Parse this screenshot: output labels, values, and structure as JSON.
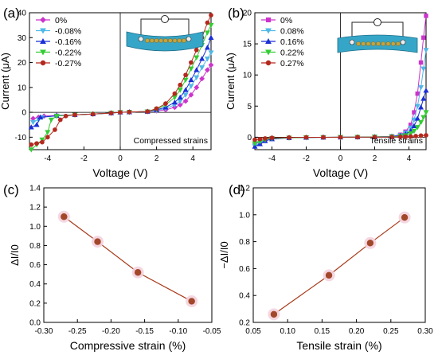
{
  "colors": {
    "s0": "#cc33cc",
    "s1": "#4fb8e6",
    "s2": "#1a2fd6",
    "s3": "#33cc33",
    "s4": "#b4281e",
    "fit": "#a83a1a",
    "marker": "#a3472a",
    "device_blue": "#36a6c8",
    "device_gold": "#c9a23a"
  },
  "chart_data": [
    {
      "type": "line",
      "panel_label": "(a)",
      "xlabel": "Voltage (V)",
      "ylabel": "Current (μA)",
      "xlim": [
        -5,
        5
      ],
      "ylim": [
        -15,
        40
      ],
      "xticks": [
        -4,
        -2,
        0,
        2,
        4
      ],
      "xtick_labels": [
        "-4",
        "-2",
        "0",
        "2",
        "4"
      ],
      "yticks": [
        -10,
        0,
        10,
        20,
        30,
        40
      ],
      "ytick_labels": [
        "-10",
        "0",
        "10",
        "20",
        "30",
        "40"
      ],
      "annotation": "Compressed strains",
      "icon": "device-compressed-icon",
      "legend_position": "top-left",
      "series": [
        {
          "name": "0%",
          "marker": "diamond",
          "color": "s0",
          "x": [
            -4.8,
            -4.5,
            -4.2,
            -3.5,
            -2.5,
            -1.5,
            -0.5,
            0,
            0.5,
            1.5,
            2.0,
            2.5,
            3.0,
            3.3,
            3.6,
            3.9,
            4.2,
            4.5,
            4.8,
            5.0
          ],
          "y": [
            -2.5,
            -2.0,
            -1.5,
            -1.2,
            -1.0,
            -0.7,
            -0.3,
            0,
            0.1,
            0.3,
            0.6,
            1.0,
            2.0,
            3.0,
            4.5,
            7.0,
            10.0,
            13.5,
            17.0,
            19.0
          ]
        },
        {
          "name": "-0.08%",
          "marker": "triangle-down",
          "color": "s1",
          "x": [
            -4.8,
            -4.5,
            -4.3,
            -3.5,
            -2.5,
            -1.5,
            -0.5,
            0,
            0.5,
            1.5,
            2.0,
            2.5,
            3.0,
            3.3,
            3.6,
            3.9,
            4.2,
            4.5,
            4.8,
            5.0
          ],
          "y": [
            -4.0,
            -3.0,
            -2.0,
            -1.4,
            -1.0,
            -0.7,
            -0.3,
            0,
            0.1,
            0.3,
            0.8,
            1.5,
            3.0,
            4.5,
            7.0,
            10.5,
            14.0,
            18.0,
            21.5,
            24.0
          ]
        },
        {
          "name": "-0.16%",
          "marker": "triangle-up",
          "color": "s2",
          "x": [
            -4.9,
            -4.6,
            -4.4,
            -3.5,
            -2.5,
            -1.5,
            -0.5,
            0,
            0.5,
            1.5,
            2.0,
            2.5,
            3.0,
            3.3,
            3.6,
            3.9,
            4.2,
            4.5,
            4.8,
            5.0
          ],
          "y": [
            -6.0,
            -5.0,
            -2.0,
            -1.4,
            -1.0,
            -0.7,
            -0.3,
            0,
            0.1,
            0.3,
            1.0,
            2.0,
            4.0,
            6.0,
            9.0,
            13.0,
            17.0,
            21.5,
            26.0,
            30.0
          ]
        },
        {
          "name": "-0.22%",
          "marker": "triangle-down",
          "color": "s3",
          "x": [
            -4.9,
            -4.6,
            -4.3,
            -4.0,
            -3.8,
            -3.5,
            -2.5,
            -1.5,
            -0.5,
            0,
            0.5,
            1.5,
            2.0,
            2.5,
            3.0,
            3.3,
            3.6,
            3.9,
            4.2,
            4.5,
            4.8,
            5.0
          ],
          "y": [
            -15.0,
            -13.0,
            -11.0,
            -8.0,
            -3.0,
            -1.5,
            -1.0,
            -0.7,
            -0.3,
            0,
            0.1,
            0.3,
            1.2,
            3.0,
            6.0,
            9.0,
            13.0,
            17.5,
            22.0,
            27.0,
            32.0,
            35.0
          ]
        },
        {
          "name": "-0.27%",
          "marker": "circle",
          "color": "s4",
          "x": [
            -4.9,
            -4.6,
            -4.3,
            -4.0,
            -3.6,
            -3.3,
            -3.0,
            -2.5,
            -1.5,
            -0.5,
            0,
            0.5,
            1.5,
            2.0,
            2.5,
            3.0,
            3.3,
            3.6,
            3.9,
            4.2,
            4.5,
            4.8,
            5.0
          ],
          "y": [
            -13.0,
            -12.5,
            -12.0,
            -10.0,
            -7.0,
            -3.0,
            -1.5,
            -1.0,
            -0.7,
            -0.3,
            0,
            0.1,
            0.3,
            1.5,
            3.5,
            7.5,
            11.0,
            15.0,
            20.0,
            25.0,
            30.0,
            36.0,
            39.0
          ]
        }
      ]
    },
    {
      "type": "line",
      "panel_label": "(b)",
      "xlabel": "Voltage (V)",
      "ylabel": "Current (μA)",
      "xlim": [
        -5,
        5
      ],
      "ylim": [
        -2,
        20
      ],
      "xticks": [
        -4,
        -2,
        0,
        2,
        4
      ],
      "xtick_labels": [
        "-4",
        "-2",
        "0",
        "2",
        "4"
      ],
      "yticks": [
        0,
        5,
        10,
        15,
        20
      ],
      "ytick_labels": [
        "0",
        "5",
        "10",
        "15",
        "20"
      ],
      "annotation": "Tensile strains",
      "icon": "device-tensile-icon",
      "legend_position": "top-left",
      "series": [
        {
          "name": "0%",
          "marker": "square",
          "color": "s0",
          "x": [
            -5.0,
            -4.7,
            -4.4,
            -4.0,
            -3.0,
            -2.0,
            -1.0,
            0,
            1.0,
            2.0,
            3.0,
            3.5,
            3.8,
            4.1,
            4.3,
            4.5,
            4.7,
            4.85,
            5.0
          ],
          "y": [
            -1.0,
            -0.8,
            -0.4,
            -0.2,
            -0.1,
            -0.05,
            -0.02,
            0,
            0.02,
            0.05,
            0.15,
            0.4,
            0.9,
            2.0,
            4.0,
            7.0,
            12.0,
            16.0,
            19.5
          ]
        },
        {
          "name": "0.08%",
          "marker": "triangle-down",
          "color": "s1",
          "x": [
            -5.0,
            -4.7,
            -4.4,
            -4.0,
            -3.0,
            -2.0,
            -1.0,
            0,
            1.0,
            2.0,
            3.0,
            3.5,
            3.8,
            4.1,
            4.3,
            4.5,
            4.7,
            4.85,
            5.0
          ],
          "y": [
            -1.4,
            -1.0,
            -0.5,
            -0.25,
            -0.1,
            -0.05,
            -0.02,
            0,
            0.02,
            0.05,
            0.12,
            0.3,
            0.7,
            1.5,
            2.8,
            5.0,
            8.0,
            11.0,
            14.0
          ]
        },
        {
          "name": "0.16%",
          "marker": "triangle-up",
          "color": "s2",
          "x": [
            -5.0,
            -4.7,
            -4.4,
            -4.0,
            -3.0,
            -2.0,
            -1.0,
            0,
            1.0,
            2.0,
            3.0,
            3.5,
            3.8,
            4.1,
            4.3,
            4.5,
            4.7,
            4.85,
            5.0
          ],
          "y": [
            -1.5,
            -1.1,
            -0.6,
            -0.3,
            -0.1,
            -0.05,
            -0.02,
            0,
            0.02,
            0.05,
            0.1,
            0.25,
            0.5,
            1.0,
            1.8,
            3.0,
            4.8,
            6.2,
            7.5
          ]
        },
        {
          "name": "0.22%",
          "marker": "triangle-down",
          "color": "s3",
          "x": [
            -5.0,
            -4.7,
            -4.4,
            -4.0,
            -3.0,
            -2.0,
            -1.0,
            0,
            1.0,
            2.0,
            3.0,
            3.5,
            3.8,
            4.1,
            4.3,
            4.5,
            4.7,
            4.85,
            5.0
          ],
          "y": [
            -1.0,
            -0.7,
            -0.4,
            -0.2,
            -0.1,
            -0.05,
            -0.02,
            0,
            0.02,
            0.05,
            0.08,
            0.15,
            0.3,
            0.6,
            1.0,
            1.6,
            2.4,
            3.2,
            4.0
          ]
        },
        {
          "name": "0.27%",
          "marker": "circle",
          "color": "s4",
          "x": [
            -5.0,
            -4.7,
            -4.4,
            -4.0,
            -3.0,
            -2.0,
            -1.0,
            0,
            1.0,
            2.0,
            3.0,
            3.5,
            3.8,
            4.1,
            4.4,
            4.7,
            5.0
          ],
          "y": [
            -0.4,
            -0.3,
            -0.2,
            -0.1,
            -0.05,
            -0.02,
            -0.01,
            0,
            0.01,
            0.02,
            0.03,
            0.05,
            0.08,
            0.12,
            0.18,
            0.25,
            0.3
          ]
        }
      ]
    },
    {
      "type": "scatter",
      "panel_label": "(c)",
      "xlabel": "Compressive strain (%)",
      "ylabel": "ΔI/I0",
      "xlim": [
        -0.3,
        -0.05
      ],
      "ylim": [
        0.0,
        1.4
      ],
      "xticks": [
        -0.3,
        -0.25,
        -0.2,
        -0.15,
        -0.1,
        -0.05
      ],
      "xtick_labels": [
        "-0.30",
        "-0.25",
        "-0.20",
        "-0.15",
        "-0.10",
        "-0.05"
      ],
      "yticks": [
        0.0,
        0.2,
        0.4,
        0.6,
        0.8,
        1.0,
        1.2,
        1.4
      ],
      "ytick_labels": [
        "0.0",
        "0.2",
        "0.4",
        "0.6",
        "0.8",
        "1.0",
        "1.2",
        "1.4"
      ],
      "series": [
        {
          "marker": "circle",
          "color": "marker",
          "x": [
            -0.27,
            -0.22,
            -0.16,
            -0.08
          ],
          "y": [
            1.1,
            0.84,
            0.52,
            0.22
          ]
        }
      ]
    },
    {
      "type": "scatter",
      "panel_label": "(d)",
      "xlabel": "Tensile strain (%)",
      "ylabel": "−ΔI/I0",
      "xlim": [
        0.05,
        0.3
      ],
      "ylim": [
        0.2,
        1.2
      ],
      "xticks": [
        0.05,
        0.1,
        0.15,
        0.2,
        0.25,
        0.3
      ],
      "xtick_labels": [
        "0.05",
        "0.10",
        "0.15",
        "0.20",
        "0.25",
        "0.30"
      ],
      "yticks": [
        0.2,
        0.4,
        0.6,
        0.8,
        1.0,
        1.2
      ],
      "ytick_labels": [
        "0.2",
        "0.4",
        "0.6",
        "0.8",
        "1.0",
        "1.2"
      ],
      "series": [
        {
          "marker": "circle",
          "color": "marker",
          "x": [
            0.08,
            0.16,
            0.22,
            0.27
          ],
          "y": [
            0.26,
            0.55,
            0.79,
            0.98
          ]
        }
      ]
    }
  ]
}
